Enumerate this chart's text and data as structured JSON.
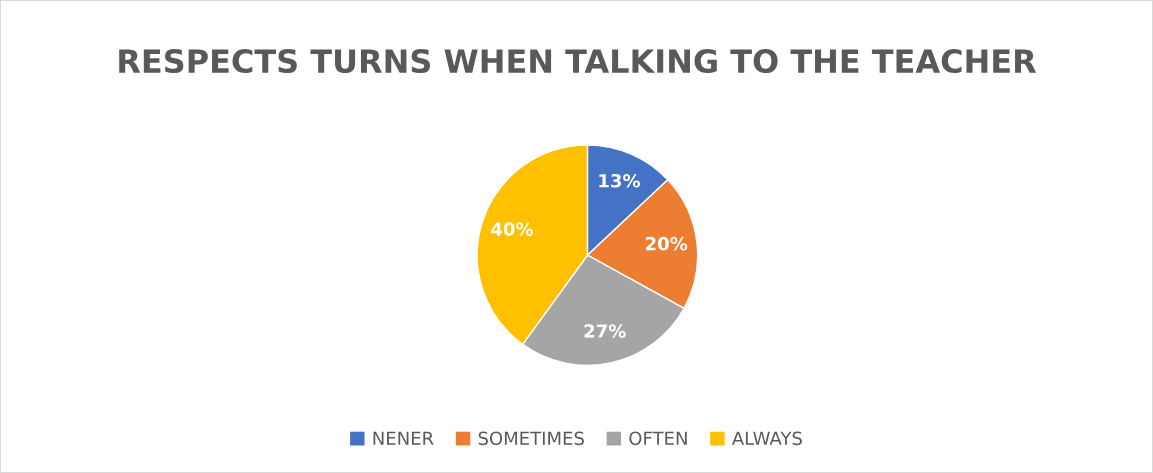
{
  "chart_data": {
    "type": "pie",
    "title": "RESPECTS TURNS WHEN TALKING TO THE TEACHER",
    "categories": [
      "NENER",
      "SOMETIMES",
      "OFTEN",
      "ALWAYS"
    ],
    "values": [
      13,
      20,
      27,
      40
    ],
    "colors": [
      "#4472c4",
      "#ed7d31",
      "#a5a5a5",
      "#ffc000"
    ],
    "value_labels": [
      "13%",
      "20%",
      "27%",
      "40%"
    ],
    "legend": "bottom"
  }
}
